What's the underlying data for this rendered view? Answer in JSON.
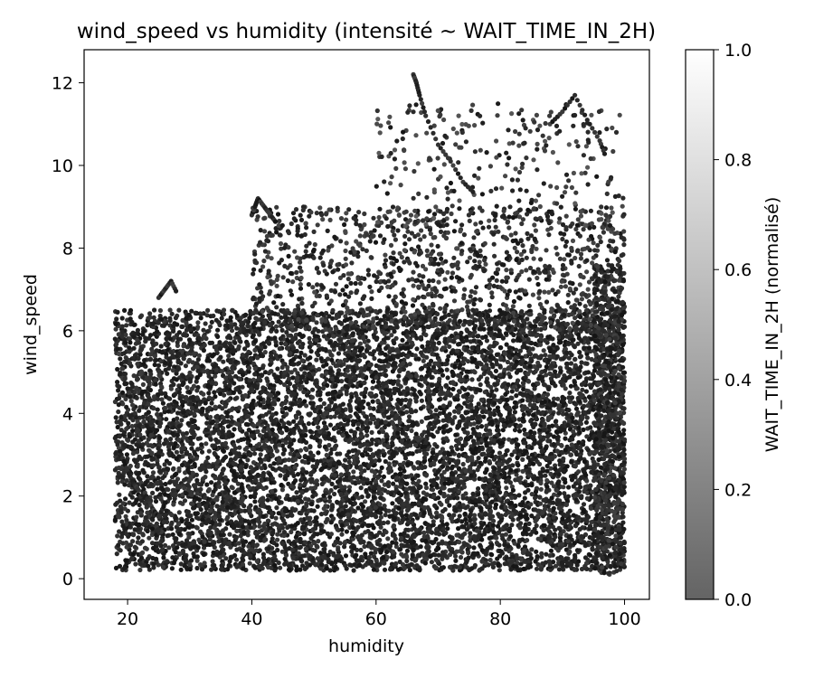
{
  "chart_data": {
    "type": "scatter",
    "title": "wind_speed vs humidity (intensité ~ WAIT_TIME_IN_2H)",
    "xlabel": "humidity",
    "ylabel": "wind_speed",
    "xlim": [
      13,
      104
    ],
    "ylim": [
      -0.5,
      12.8
    ],
    "xticks": [
      20,
      40,
      60,
      80,
      100
    ],
    "yticks": [
      0,
      2,
      4,
      6,
      8,
      10,
      12
    ],
    "grid": false,
    "colormap": "gray",
    "point_alpha": 0.8,
    "colorbar": {
      "label": "WAIT_TIME_IN_2H (normalisé)",
      "range": [
        0,
        1
      ],
      "ticks": [
        "0.0",
        "0.2",
        "0.4",
        "0.6",
        "0.8",
        "1.0"
      ]
    },
    "points_description_note": null,
    "clusters": [
      {
        "x_range": [
          18,
          100
        ],
        "y_range": [
          0.2,
          6.5
        ],
        "n": 9000,
        "shade_range": [
          0.0,
          0.25
        ]
      },
      {
        "x_range": [
          40,
          100
        ],
        "y_range": [
          6.0,
          9.0
        ],
        "n": 1200,
        "shade_range": [
          0.0,
          0.35
        ]
      },
      {
        "x_range": [
          60,
          100
        ],
        "y_range": [
          8.5,
          11.5
        ],
        "n": 260,
        "shade_range": [
          0.0,
          0.45
        ]
      },
      {
        "x_range": [
          95,
          100
        ],
        "y_range": [
          0.1,
          7.6
        ],
        "n": 700,
        "shade_range": [
          0.0,
          0.3
        ]
      }
    ],
    "tracks": [
      {
        "x": [
          66,
          66.5,
          67,
          68,
          70,
          72,
          74,
          76
        ],
        "y": [
          12.2,
          12.0,
          11.7,
          11.2,
          10.5,
          10.1,
          9.6,
          9.3
        ]
      },
      {
        "x": [
          40,
          40.5,
          41,
          42,
          43,
          44
        ],
        "y": [
          8.8,
          9.0,
          9.2,
          9.0,
          8.8,
          8.6
        ]
      },
      {
        "x": [
          18,
          19,
          20,
          21,
          22
        ],
        "y": [
          5.8,
          5.2,
          4.6,
          4.1,
          3.6
        ]
      },
      {
        "x": [
          25,
          26,
          27,
          28
        ],
        "y": [
          6.8,
          7.0,
          7.2,
          6.9
        ]
      },
      {
        "x": [
          88,
          90,
          92,
          94,
          96,
          97
        ],
        "y": [
          11.0,
          11.3,
          11.7,
          11.1,
          10.6,
          10.2
        ]
      },
      {
        "x": [
          22,
          23,
          24,
          25,
          26
        ],
        "y": [
          2.4,
          2.0,
          1.7,
          1.5,
          1.8
        ]
      },
      {
        "x": [
          18,
          19,
          20,
          21,
          22
        ],
        "y": [
          3.4,
          3.0,
          2.6,
          2.3,
          2.1
        ]
      }
    ]
  }
}
